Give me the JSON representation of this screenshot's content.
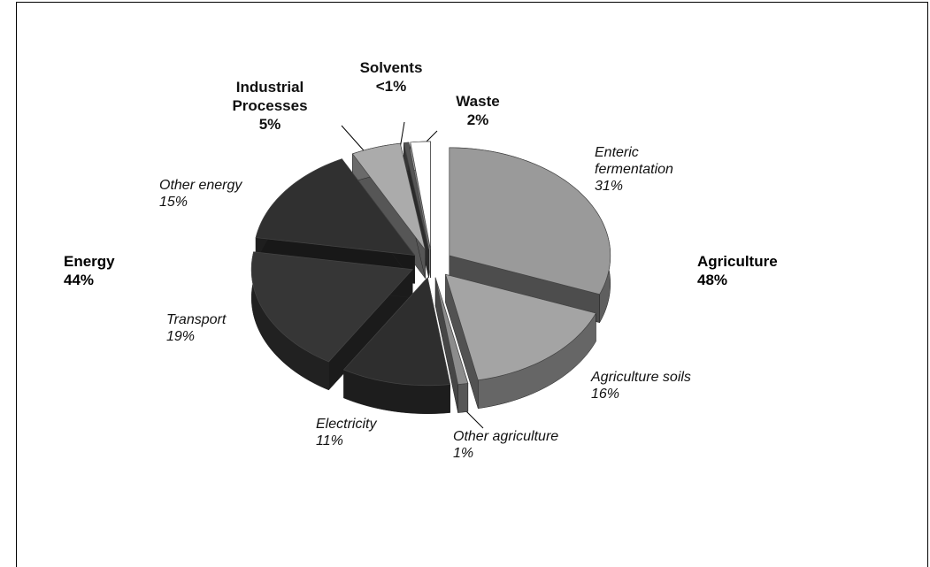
{
  "chart_data": {
    "type": "pie",
    "categories": [
      "Enteric fermentation",
      "Agriculture soils",
      "Other agriculture",
      "Electricity",
      "Transport",
      "Other energy",
      "Industrial Processes",
      "Solvents",
      "Waste"
    ],
    "values": [
      31,
      16,
      1,
      11,
      19,
      15,
      5,
      0.5,
      2
    ],
    "value_labels": [
      "31%",
      "16%",
      "1%",
      "11%",
      "19%",
      "15%",
      "5%",
      "<1%",
      "2%"
    ],
    "colors": [
      "#9a9a9a",
      "#a4a4a4",
      "#8c8c8c",
      "#2e2e2e",
      "#363636",
      "#303030",
      "#ababab",
      "#555555",
      "#ffffff"
    ],
    "bold_labels": [
      false,
      false,
      false,
      false,
      false,
      false,
      true,
      true,
      true
    ],
    "groups": [
      {
        "name": "Agriculture",
        "value": 48,
        "value_label": "48%"
      },
      {
        "name": "Energy",
        "value": 44,
        "value_label": "44%"
      }
    ]
  }
}
